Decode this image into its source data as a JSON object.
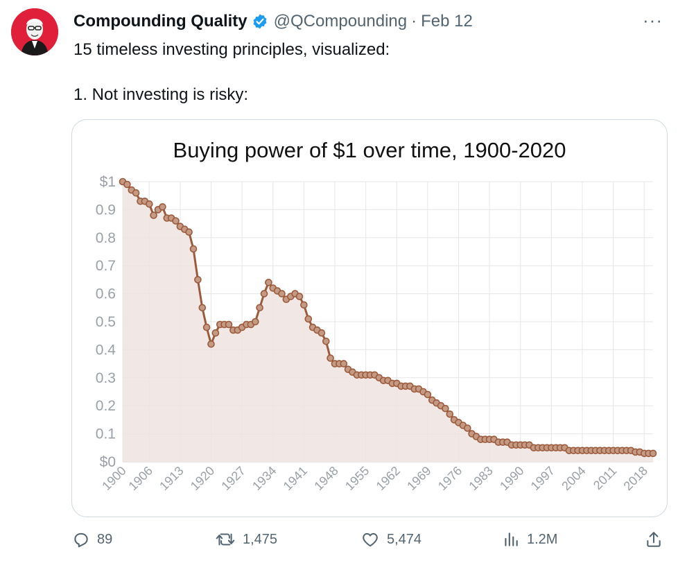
{
  "tweet": {
    "author_name": "Compounding Quality",
    "handle": "@QCompounding",
    "separator": "·",
    "date": "Feb 12",
    "text_line1": "15 timeless investing principles, visualized:",
    "text_line2": "1.  Not investing is risky:",
    "more_label": "···"
  },
  "actions": {
    "replies": "89",
    "retweets": "1,475",
    "likes": "5,474",
    "views": "1.2M"
  },
  "icons": {
    "verified": "verified-badge-icon",
    "reply": "reply-icon",
    "retweet": "retweet-icon",
    "like": "heart-icon",
    "views": "views-icon",
    "share": "share-icon"
  },
  "colors": {
    "verified": "#1d9bf0",
    "avatar_bg": "#e0203a",
    "line": "#9b5a3c",
    "fill": "#eee3df",
    "muted": "#536471"
  },
  "chart_data": {
    "type": "area",
    "title": "Buying power of $1 over time, 1900-2020",
    "xlabel": "",
    "ylabel": "",
    "x_ticks": [
      "1900",
      "1906",
      "1913",
      "1920",
      "1927",
      "1934",
      "1941",
      "1948",
      "1955",
      "1962",
      "1969",
      "1976",
      "1983",
      "1990",
      "1997",
      "2004",
      "2011",
      "2018"
    ],
    "y_ticks": [
      "$0",
      "0.1",
      "0.2",
      "0.3",
      "0.4",
      "0.5",
      "0.6",
      "0.7",
      "0.8",
      "0.9",
      "$1"
    ],
    "xlim": [
      1900,
      2020
    ],
    "ylim": [
      0,
      1
    ],
    "grid": true,
    "series": [
      {
        "x": [
          1900,
          1901,
          1902,
          1903,
          1904,
          1905,
          1906,
          1907,
          1908,
          1909,
          1910,
          1911,
          1912,
          1913,
          1914,
          1915,
          1916,
          1917,
          1918,
          1919,
          1920,
          1921,
          1922,
          1923,
          1924,
          1925,
          1926,
          1927,
          1928,
          1929,
          1930,
          1931,
          1932,
          1933,
          1934,
          1935,
          1936,
          1937,
          1938,
          1939,
          1940,
          1941,
          1942,
          1943,
          1944,
          1945,
          1946,
          1947,
          1948,
          1949,
          1950,
          1951,
          1952,
          1953,
          1954,
          1955,
          1956,
          1957,
          1958,
          1959,
          1960,
          1961,
          1962,
          1963,
          1964,
          1965,
          1966,
          1967,
          1968,
          1969,
          1970,
          1971,
          1972,
          1973,
          1974,
          1975,
          1976,
          1977,
          1978,
          1979,
          1980,
          1981,
          1982,
          1983,
          1984,
          1985,
          1986,
          1987,
          1988,
          1989,
          1990,
          1991,
          1992,
          1993,
          1994,
          1995,
          1996,
          1997,
          1998,
          1999,
          2000,
          2001,
          2002,
          2003,
          2004,
          2005,
          2006,
          2007,
          2008,
          2009,
          2010,
          2011,
          2012,
          2013,
          2014,
          2015,
          2016,
          2017,
          2018,
          2019,
          2020
        ],
        "values": [
          1.0,
          0.99,
          0.97,
          0.96,
          0.93,
          0.93,
          0.92,
          0.88,
          0.9,
          0.91,
          0.87,
          0.87,
          0.86,
          0.84,
          0.83,
          0.82,
          0.76,
          0.65,
          0.55,
          0.48,
          0.42,
          0.46,
          0.49,
          0.49,
          0.49,
          0.47,
          0.47,
          0.48,
          0.49,
          0.49,
          0.5,
          0.55,
          0.6,
          0.64,
          0.62,
          0.61,
          0.6,
          0.58,
          0.59,
          0.6,
          0.59,
          0.56,
          0.51,
          0.48,
          0.47,
          0.46,
          0.43,
          0.37,
          0.35,
          0.35,
          0.35,
          0.33,
          0.32,
          0.31,
          0.31,
          0.31,
          0.31,
          0.31,
          0.3,
          0.29,
          0.29,
          0.28,
          0.28,
          0.27,
          0.27,
          0.27,
          0.26,
          0.26,
          0.25,
          0.24,
          0.22,
          0.21,
          0.2,
          0.19,
          0.17,
          0.15,
          0.14,
          0.13,
          0.12,
          0.1,
          0.09,
          0.08,
          0.08,
          0.08,
          0.08,
          0.07,
          0.07,
          0.07,
          0.06,
          0.06,
          0.06,
          0.06,
          0.06,
          0.05,
          0.05,
          0.05,
          0.05,
          0.05,
          0.05,
          0.05,
          0.05,
          0.04,
          0.04,
          0.04,
          0.04,
          0.04,
          0.04,
          0.04,
          0.04,
          0.04,
          0.04,
          0.04,
          0.04,
          0.04,
          0.04,
          0.04,
          0.035,
          0.035,
          0.03,
          0.03,
          0.03
        ]
      }
    ]
  }
}
